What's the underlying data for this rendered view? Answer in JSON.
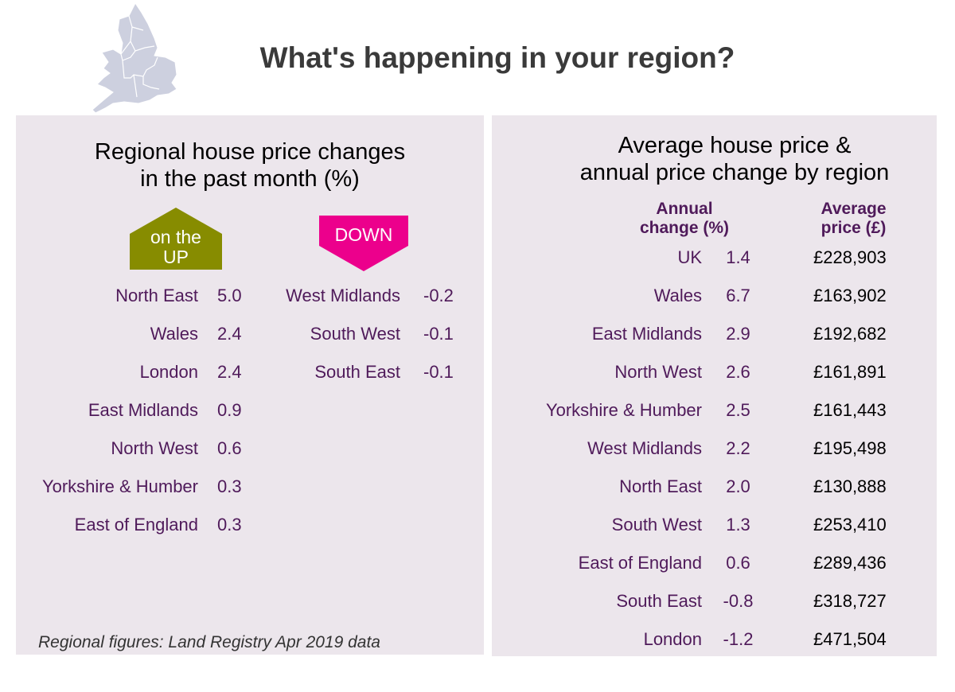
{
  "title": "What's happening in your region?",
  "left": {
    "title_line1": "Regional house price changes",
    "title_line2": "in the past month (%)",
    "up_label_line1": "on the",
    "up_label_line2": "UP",
    "down_label": "DOWN",
    "up": [
      {
        "region": "North East",
        "value": "5.0"
      },
      {
        "region": "Wales",
        "value": "2.4"
      },
      {
        "region": "London",
        "value": "2.4"
      },
      {
        "region": "East Midlands",
        "value": "0.9"
      },
      {
        "region": "North West",
        "value": "0.6"
      },
      {
        "region": "Yorkshire & Humber",
        "value": "0.3"
      },
      {
        "region": "East of England",
        "value": "0.3"
      }
    ],
    "down": [
      {
        "region": "West Midlands",
        "value": "-0.2"
      },
      {
        "region": "South West",
        "value": "-0.1"
      },
      {
        "region": "South East",
        "value": "-0.1"
      }
    ],
    "note": "Regional figures: Land Registry Apr 2019 data"
  },
  "right": {
    "title_line1": "Average house price &",
    "title_line2": "annual price change by region",
    "col_change_1": "Annual",
    "col_change_2": "change (%)",
    "col_price_1": "Average",
    "col_price_2": "price (£)",
    "rows": [
      {
        "region": "UK",
        "change": "1.4",
        "price": "£228,903"
      },
      {
        "region": "Wales",
        "change": "6.7",
        "price": "£163,902"
      },
      {
        "region": "East Midlands",
        "change": "2.9",
        "price": "£192,682"
      },
      {
        "region": "North West",
        "change": "2.6",
        "price": "£161,891"
      },
      {
        "region": "Yorkshire & Humber",
        "change": "2.5",
        "price": "£161,443"
      },
      {
        "region": "West Midlands",
        "change": "2.2",
        "price": "£195,498"
      },
      {
        "region": "North East",
        "change": "2.0",
        "price": "£130,888"
      },
      {
        "region": "South West",
        "change": "1.3",
        "price": "£253,410"
      },
      {
        "region": "East of England",
        "change": "0.6",
        "price": "£289,436"
      },
      {
        "region": "South East",
        "change": "-0.8",
        "price": "£318,727"
      },
      {
        "region": "London",
        "change": "-1.2",
        "price": "£471,504"
      }
    ]
  },
  "colors": {
    "panel": "#ece6ec",
    "text": "#4f1a5a",
    "up": "#878c00",
    "down": "#ec008c"
  }
}
